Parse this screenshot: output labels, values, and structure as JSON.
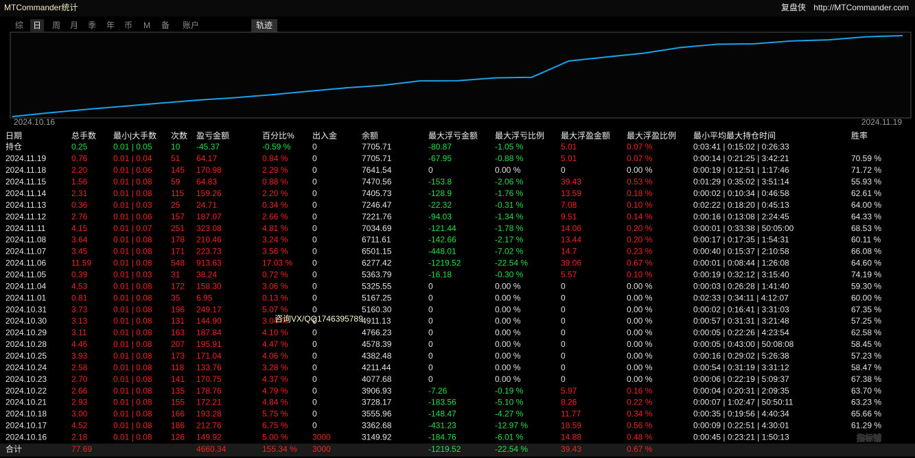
{
  "header": {
    "title": "MTCommander统计",
    "brand": "复盘侠",
    "url": "http://MTCommander.com"
  },
  "tabs": [
    "综",
    "日",
    "周",
    "月",
    "季",
    "年",
    "币",
    "M",
    "备",
    "账户"
  ],
  "active_tab": "日",
  "track_button": "轨迹",
  "chart": {
    "start_label": "2024.10.16",
    "end_label": "2024.11.19",
    "color": "#1aa3ea"
  },
  "table": {
    "columns": [
      "日期",
      "总手数",
      "最小|大手数",
      "次数",
      "盈亏金额",
      "百分比%",
      "出入金",
      "余额",
      "最大浮亏金额",
      "最大浮亏比例",
      "最大浮盈金额",
      "最大浮盈比例",
      "最小平均最大持仓时间",
      "胜率"
    ],
    "holding": [
      "持仓",
      "0.25",
      "0.01 | 0.05",
      "10",
      "-45.37",
      "-0.59 %",
      "0",
      "7705.71",
      "-80.87",
      "-1.05 %",
      "5.01",
      "0.07 %",
      "0:03:41 | 0:15:02 | 0:26:33",
      null
    ],
    "rows": [
      [
        "2024.11.19",
        "0.76",
        "0.01 | 0.04",
        "51",
        "64.17",
        "0.84 %",
        "0",
        "7705.71",
        "-67.95",
        "-0.88 %",
        "5.01",
        "0.07 %",
        "0:00:14 | 0:21:25 | 3:42:21",
        "70.59 %"
      ],
      [
        "2024.11.18",
        "2.20",
        "0.01 | 0.06",
        "145",
        "170.98",
        "2.29 %",
        "0",
        "7641.54",
        "0",
        "0.00 %",
        "0",
        "0.00 %",
        "0:00:19 | 0:12:51 | 1:17:46",
        "71.72 %"
      ],
      [
        "2024.11.15",
        "1.56",
        "0.01 | 0.08",
        "59",
        "64.83",
        "0.88 %",
        "0",
        "7470.56",
        "-153.8",
        "-2.06 %",
        "39.43",
        "0.53 %",
        "0:01:29 | 0:35:02 | 3:51:14",
        "55.93 %"
      ],
      [
        "2024.11.14",
        "2.31",
        "0.01 | 0.08",
        "115",
        "159.26",
        "2.20 %",
        "0",
        "7405.73",
        "-128.9",
        "-1.76 %",
        "13.59",
        "0.18 %",
        "0:00:02 | 0:10:34 | 0:46:58",
        "62.61 %"
      ],
      [
        "2024.11.13",
        "0.36",
        "0.01 | 0.03",
        "25",
        "24.71",
        "0.34 %",
        "0",
        "7246.47",
        "-22.32",
        "-0.31 %",
        "7.08",
        "0.10 %",
        "0:02:22 | 0:18:20 | 0:45:13",
        "64.00 %"
      ],
      [
        "2024.11.12",
        "2.76",
        "0.01 | 0.06",
        "157",
        "187.07",
        "2.66 %",
        "0",
        "7221.76",
        "-94.03",
        "-1.34 %",
        "9.51",
        "0.14 %",
        "0:00:16 | 0:13:08 | 2:24:45",
        "64.33 %"
      ],
      [
        "2024.11.11",
        "4.15",
        "0.01 | 0.07",
        "251",
        "323.08",
        "4.81 %",
        "0",
        "7034.69",
        "-121.44",
        "-1.78 %",
        "14.06",
        "0.20 %",
        "0:00:01 | 0:33:38 | 50:05:00",
        "68.53 %"
      ],
      [
        "2024.11.08",
        "3.64",
        "0.01 | 0.08",
        "178",
        "210.46",
        "3.24 %",
        "0",
        "6711.61",
        "-142.66",
        "-2.17 %",
        "13.44",
        "0.20 %",
        "0:00:17 | 0:17:35 | 1:54:31",
        "60.11 %"
      ],
      [
        "2024.11.07",
        "3.45",
        "0.01 | 0.08",
        "171",
        "223.73",
        "3.56 %",
        "0",
        "6501.15",
        "-448.01",
        "-7.02 %",
        "14.7",
        "0.23 %",
        "0:00:40 | 0:15:37 | 2:10:58",
        "66.08 %"
      ],
      [
        "2024.11.06",
        "11.59",
        "0.01 | 0.08",
        "548",
        "913.63",
        "17.03 %",
        "0",
        "6277.42",
        "-1219.52",
        "-22.54 %",
        "39.06",
        "0.67 %",
        "0:00:01 | 0:08:44 | 1:26:08",
        "64.60 %"
      ],
      [
        "2024.11.05",
        "0.39",
        "0.01 | 0.03",
        "31",
        "38.24",
        "0.72 %",
        "0",
        "5363.79",
        "-16.18",
        "-0.30 %",
        "5.57",
        "0.10 %",
        "0:00:19 | 0:32:12 | 3:15:40",
        "74.19 %"
      ],
      [
        "2024.11.04",
        "4.53",
        "0.01 | 0.08",
        "172",
        "158.30",
        "3.06 %",
        "0",
        "5325.55",
        "0",
        "0.00 %",
        "0",
        "0.00 %",
        "0:00:03 | 0:26:28 | 1:41:40",
        "59.30 %"
      ],
      [
        "2024.11.01",
        "0.81",
        "0.01 | 0.08",
        "35",
        "6.95",
        "0.13 %",
        "0",
        "5167.25",
        "0",
        "0.00 %",
        "0",
        "0.00 %",
        "0:02:33 | 0:34:11 | 4:12:07",
        "60.00 %"
      ],
      [
        "2024.10.31",
        "3.73",
        "0.01 | 0.08",
        "196",
        "249.17",
        "5.07 %",
        "0",
        "5160.30",
        "0",
        "0.00 %",
        "0",
        "0.00 %",
        "0:00:02 | 0:16:41 | 3:31:03",
        "67.35 %"
      ],
      [
        "2024.10.30",
        "3.13",
        "0.01 | 0.08",
        "131",
        "144.90",
        "3.04 %",
        "0",
        "4911.13",
        "0",
        "0.00 %",
        "0",
        "0.00 %",
        "0:00:57 | 0:31:31 | 3:21:48",
        "57.25 %"
      ],
      [
        "2024.10.29",
        "3.11",
        "0.01 | 0.08",
        "163",
        "187.84",
        "4.10 %",
        "0",
        "4766.23",
        "0",
        "0.00 %",
        "0",
        "0.00 %",
        "0:00:05 | 0:22:26 | 4:23:54",
        "62.58 %"
      ],
      [
        "2024.10.28",
        "4.46",
        "0.01 | 0.08",
        "207",
        "195.91",
        "4.47 %",
        "0",
        "4578.39",
        "0",
        "0.00 %",
        "0",
        "0.00 %",
        "0:00:05 | 0:43:00 | 50:08:08",
        "58.45 %"
      ],
      [
        "2024.10.25",
        "3.93",
        "0.01 | 0.08",
        "173",
        "171.04",
        "4.06 %",
        "0",
        "4382.48",
        "0",
        "0.00 %",
        "0",
        "0.00 %",
        "0:00:16 | 0:29:02 | 5:26:38",
        "57.23 %"
      ],
      [
        "2024.10.24",
        "2.58",
        "0.01 | 0.08",
        "118",
        "133.76",
        "3.28 %",
        "0",
        "4211.44",
        "0",
        "0.00 %",
        "0",
        "0.00 %",
        "0:00:54 | 0:31:19 | 3:31:12",
        "58.47 %"
      ],
      [
        "2024.10.23",
        "2.70",
        "0.01 | 0.08",
        "141",
        "170.75",
        "4.37 %",
        "0",
        "4077.68",
        "0",
        "0.00 %",
        "0",
        "0.00 %",
        "0:00:06 | 0:22:19 | 5:09:37",
        "67.38 %"
      ],
      [
        "2024.10.22",
        "2.66",
        "0.01 | 0.08",
        "135",
        "178.76",
        "4.79 %",
        "0",
        "3906.93",
        "-7.26",
        "-0.19 %",
        "5.97",
        "0.16 %",
        "0:00:04 | 0:20:31 | 2:09:35",
        "63.70 %"
      ],
      [
        "2024.10.21",
        "2.93",
        "0.01 | 0.08",
        "155",
        "172.21",
        "4.84 %",
        "0",
        "3728.17",
        "-183.56",
        "-5.10 %",
        "8.26",
        "0.22 %",
        "0:00:07 | 1:02:47 | 50:50:11",
        "63.23 %"
      ],
      [
        "2024.10.18",
        "3.00",
        "0.01 | 0.08",
        "166",
        "193.28",
        "5.75 %",
        "0",
        "3555.96",
        "-148.47",
        "-4.27 %",
        "11.77",
        "0.34 %",
        "0:00:35 | 0:19:56 | 4:40:34",
        "65.66 %"
      ],
      [
        "2024.10.17",
        "4.52",
        "0.01 | 0.08",
        "186",
        "212.76",
        "6.75 %",
        "0",
        "3362.68",
        "-431.23",
        "-12.97 %",
        "18.59",
        "0.56 %",
        "0:00:09 | 0:22:51 | 4:30:01",
        "61.29 %"
      ],
      [
        "2024.10.16",
        "2.18",
        "0.01 | 0.08",
        "126",
        "149.92",
        "5.00 %",
        "3000",
        "3149.92",
        "-184.76",
        "-6.01 %",
        "14.88",
        "0.48 %",
        "0:00:45 | 0:23:21 | 1:50:13",
        null
      ]
    ],
    "total": [
      "合计",
      "77.69",
      null,
      null,
      "4660.34",
      "155.34 %",
      "3000",
      null,
      "-1219.52",
      "-22.54 %",
      "39.43",
      "0.67 %",
      null,
      null
    ]
  },
  "watermark": "咨询VX/QQ1746395789",
  "logo": "指标铺"
}
